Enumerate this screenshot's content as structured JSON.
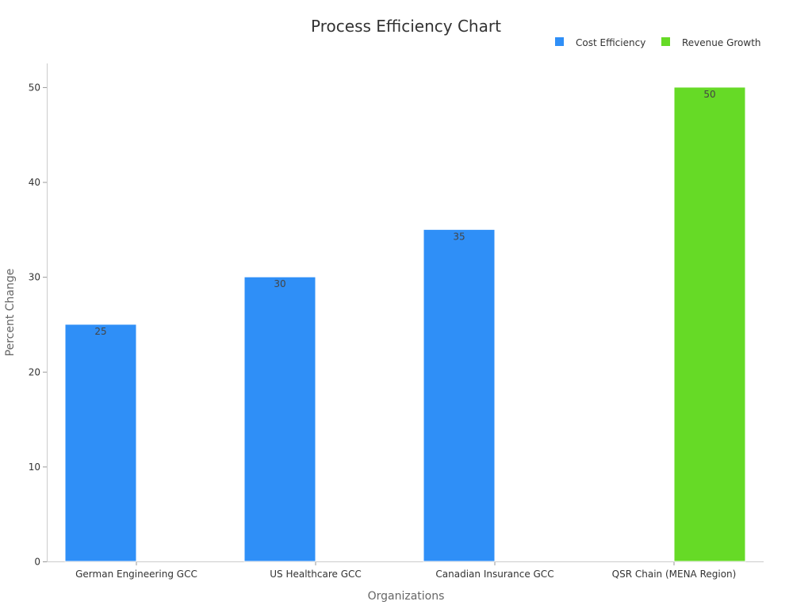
{
  "chart_data": {
    "type": "bar",
    "title": "Process Efficiency Chart",
    "xlabel": "Organizations",
    "ylabel": "Percent Change",
    "categories": [
      "German Engineering GCC",
      "US Healthcare GCC",
      "Canadian Insurance GCC",
      "QSR Chain (MENA Region)"
    ],
    "series": [
      {
        "name": "Cost Efficiency",
        "color": "#2f8ff7",
        "values": [
          25,
          30,
          35,
          null
        ]
      },
      {
        "name": "Revenue Growth",
        "color": "#66da26",
        "values": [
          null,
          null,
          null,
          50
        ]
      }
    ],
    "ylim": [
      0,
      52.5
    ],
    "yticks": [
      0,
      10,
      20,
      30,
      40,
      50
    ],
    "legend_position": "top-right",
    "grid": false
  }
}
